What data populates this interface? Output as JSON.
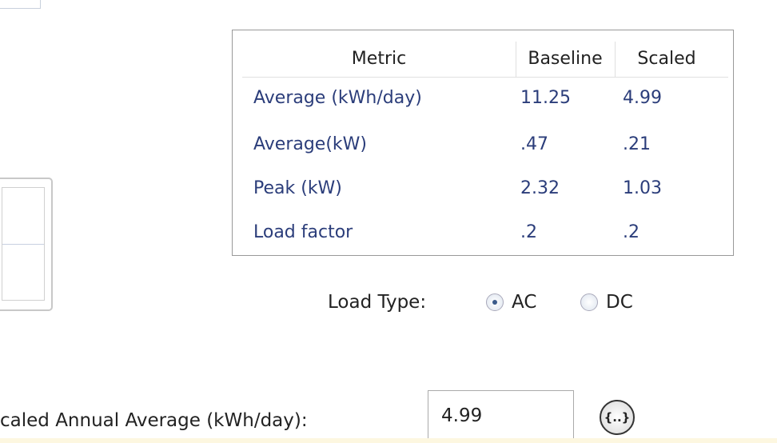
{
  "table": {
    "headers": [
      "Metric",
      "Baseline",
      "Scaled"
    ],
    "rows": [
      [
        "Average (kWh/day)",
        "11.25",
        "4.99"
      ],
      [
        "Average(kW)",
        ".47",
        ".21"
      ],
      [
        "Peak (kW)",
        "2.32",
        "1.03"
      ],
      [
        "Load factor",
        ".2",
        ".2"
      ]
    ]
  },
  "load_type": {
    "label": "Load Type:",
    "options": [
      "AC",
      "DC"
    ],
    "selected": 0
  },
  "scaled_annual_average": {
    "label": "caled Annual Average (kWh/day):",
    "value": "4.99",
    "button": "{..}"
  }
}
